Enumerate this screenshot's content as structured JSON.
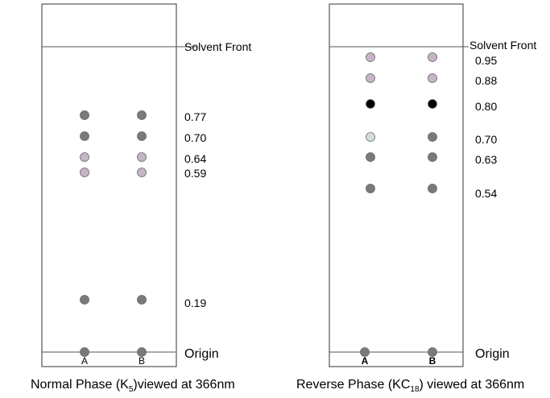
{
  "left_plate": {
    "solvent_front_label": "Solvent Front",
    "origin_label": "Origin",
    "lanes": [
      "A",
      "B"
    ],
    "caption": {
      "pre": "Normal Phase (K",
      "sub": "5",
      "post": ")viewed at 366nm"
    },
    "spots": [
      {
        "rf": "0.77",
        "color_a": "#7a7a7a",
        "color_b": "#7a7a7a"
      },
      {
        "rf": "0.70",
        "color_a": "#7a7a7a",
        "color_b": "#7a7a7a"
      },
      {
        "rf": "0.64",
        "color_a": "#c7b4c9",
        "color_b": "#c7b4c9"
      },
      {
        "rf": "0.59",
        "color_a": "#c7b4c9",
        "color_b": "#c7b4c9"
      },
      {
        "rf": "0.19",
        "color_a": "#7a7a7a",
        "color_b": "#7a7a7a"
      }
    ],
    "origin_color": "#7a7a7a"
  },
  "right_plate": {
    "solvent_front_label": "Solvent Front",
    "origin_label": "Origin",
    "lanes": [
      "A",
      "B"
    ],
    "caption": {
      "pre": "Reverse Phase (KC",
      "sub": "18",
      "post": ") viewed at 366nm"
    },
    "spots": [
      {
        "rf": "0.95",
        "color_a": "#c7b4c9",
        "color_b": "#c7b4c9"
      },
      {
        "rf": "0.88",
        "color_a": "#c7b4c9",
        "color_b": "#c7b4c9"
      },
      {
        "rf": "0.80",
        "color_a": "#000000",
        "color_b": "#000000"
      },
      {
        "rf": "0.70",
        "color_a": "#d4dede",
        "color_b": "#7a7a7a"
      },
      {
        "rf": "0.63",
        "color_a": "#7a7a7a",
        "color_b": "#7a7a7a"
      },
      {
        "rf": "0.54",
        "color_a": "#7a7a7a",
        "color_b": "#7a7a7a"
      }
    ],
    "origin_color": "#7a7a7a"
  }
}
